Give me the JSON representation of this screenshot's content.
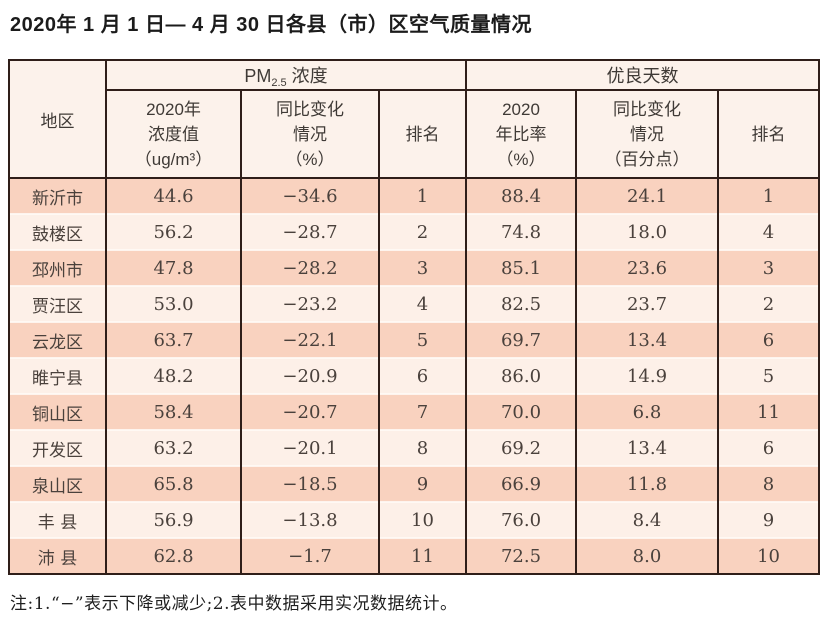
{
  "title": "2020年 1 月 1 日— 4 月 30 日各县（市）区空气质量情况",
  "table": {
    "region_header": "地区",
    "pm_group": {
      "prefix": "PM",
      "subscript": "2.5",
      "suffix": " 浓度"
    },
    "good_group_label": "优良天数",
    "subheaders": {
      "conc": {
        "line1": "2020年",
        "line2": "浓度值",
        "line3": "（ug/m³）"
      },
      "pm_change": {
        "line1": "同比变化",
        "line2": "情况",
        "line3": "（%）"
      },
      "pm_rank": "排名",
      "ratio": {
        "line1": "2020",
        "line2": "年比率",
        "line3": "（%）"
      },
      "good_change": {
        "line1": "同比变化",
        "line2": "情况",
        "line3": "（百分点）"
      },
      "good_rank": "排名"
    },
    "rows": [
      {
        "region": "新沂市",
        "pm_value": "44.6",
        "pm_change": "−34.6",
        "pm_rank": "1",
        "good_ratio": "88.4",
        "good_change": "24.1",
        "good_rank": "1"
      },
      {
        "region": "鼓楼区",
        "pm_value": "56.2",
        "pm_change": "−28.7",
        "pm_rank": "2",
        "good_ratio": "74.8",
        "good_change": "18.0",
        "good_rank": "4"
      },
      {
        "region": "邳州市",
        "pm_value": "47.8",
        "pm_change": "−28.2",
        "pm_rank": "3",
        "good_ratio": "85.1",
        "good_change": "23.6",
        "good_rank": "3"
      },
      {
        "region": "贾汪区",
        "pm_value": "53.0",
        "pm_change": "−23.2",
        "pm_rank": "4",
        "good_ratio": "82.5",
        "good_change": "23.7",
        "good_rank": "2"
      },
      {
        "region": "云龙区",
        "pm_value": "63.7",
        "pm_change": "−22.1",
        "pm_rank": "5",
        "good_ratio": "69.7",
        "good_change": "13.4",
        "good_rank": "6"
      },
      {
        "region": "睢宁县",
        "pm_value": "48.2",
        "pm_change": "−20.9",
        "pm_rank": "6",
        "good_ratio": "86.0",
        "good_change": "14.9",
        "good_rank": "5"
      },
      {
        "region": "铜山区",
        "pm_value": "58.4",
        "pm_change": "−20.7",
        "pm_rank": "7",
        "good_ratio": "70.0",
        "good_change": "6.8",
        "good_rank": "11"
      },
      {
        "region": "开发区",
        "pm_value": "63.2",
        "pm_change": "−20.1",
        "pm_rank": "8",
        "good_ratio": "69.2",
        "good_change": "13.4",
        "good_rank": "6"
      },
      {
        "region": "泉山区",
        "pm_value": "65.8",
        "pm_change": "−18.5",
        "pm_rank": "9",
        "good_ratio": "66.9",
        "good_change": "11.8",
        "good_rank": "8"
      },
      {
        "region": "丰 县",
        "pm_value": "56.9",
        "pm_change": "−13.8",
        "pm_rank": "10",
        "good_ratio": "76.0",
        "good_change": "8.4",
        "good_rank": "9"
      },
      {
        "region": "沛 县",
        "pm_value": "62.8",
        "pm_change": "−1.7",
        "pm_rank": "11",
        "good_ratio": "72.5",
        "good_change": "8.0",
        "good_rank": "10"
      }
    ]
  },
  "note": "注:1.“−”表示下降或减少;2.表中数据采用实况数据统计。",
  "colors": {
    "border": "#2f1e19",
    "header_bg": "#fcf2eb",
    "row_pink": "#f9d2bf",
    "row_cream": "#fdf0e8",
    "data_text": "#4a413c"
  }
}
